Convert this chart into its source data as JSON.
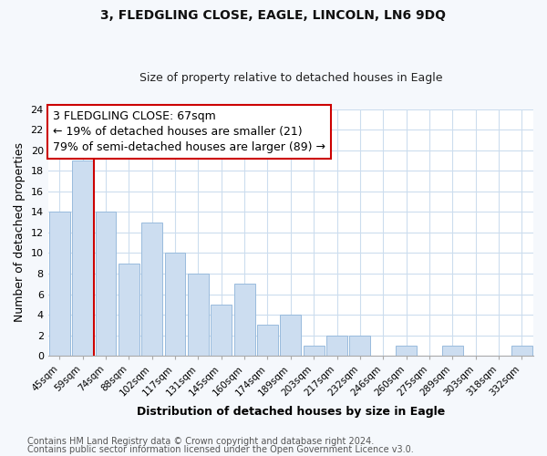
{
  "title": "3, FLEDGLING CLOSE, EAGLE, LINCOLN, LN6 9DQ",
  "subtitle": "Size of property relative to detached houses in Eagle",
  "xlabel": "Distribution of detached houses by size in Eagle",
  "ylabel": "Number of detached properties",
  "footnote1": "Contains HM Land Registry data © Crown copyright and database right 2024.",
  "footnote2": "Contains public sector information licensed under the Open Government Licence v3.0.",
  "bin_labels": [
    "45sqm",
    "59sqm",
    "74sqm",
    "88sqm",
    "102sqm",
    "117sqm",
    "131sqm",
    "145sqm",
    "160sqm",
    "174sqm",
    "189sqm",
    "203sqm",
    "217sqm",
    "232sqm",
    "246sqm",
    "260sqm",
    "275sqm",
    "289sqm",
    "303sqm",
    "318sqm",
    "332sqm"
  ],
  "values": [
    14,
    19,
    14,
    9,
    13,
    10,
    8,
    5,
    7,
    3,
    4,
    1,
    2,
    2,
    0,
    1,
    0,
    1,
    0,
    0,
    1
  ],
  "bar_color": "#ccddf0",
  "bar_edge_color": "#99bbdd",
  "ylim": [
    0,
    24
  ],
  "yticks": [
    0,
    2,
    4,
    6,
    8,
    10,
    12,
    14,
    16,
    18,
    20,
    22,
    24
  ],
  "vline_color": "#cc0000",
  "vline_x": 1.5,
  "annotation_text_line1": "3 FLEDGLING CLOSE: 67sqm",
  "annotation_text_line2": "← 19% of detached houses are smaller (21)",
  "annotation_text_line3": "79% of semi-detached houses are larger (89) →",
  "grid_color": "#ccddee",
  "plot_bg_color": "#ffffff",
  "fig_bg_color": "#f5f8fc",
  "title_fontsize": 10,
  "subtitle_fontsize": 9,
  "annotation_fontsize": 9,
  "ylabel_fontsize": 9,
  "xlabel_fontsize": 9,
  "footnote_fontsize": 7
}
